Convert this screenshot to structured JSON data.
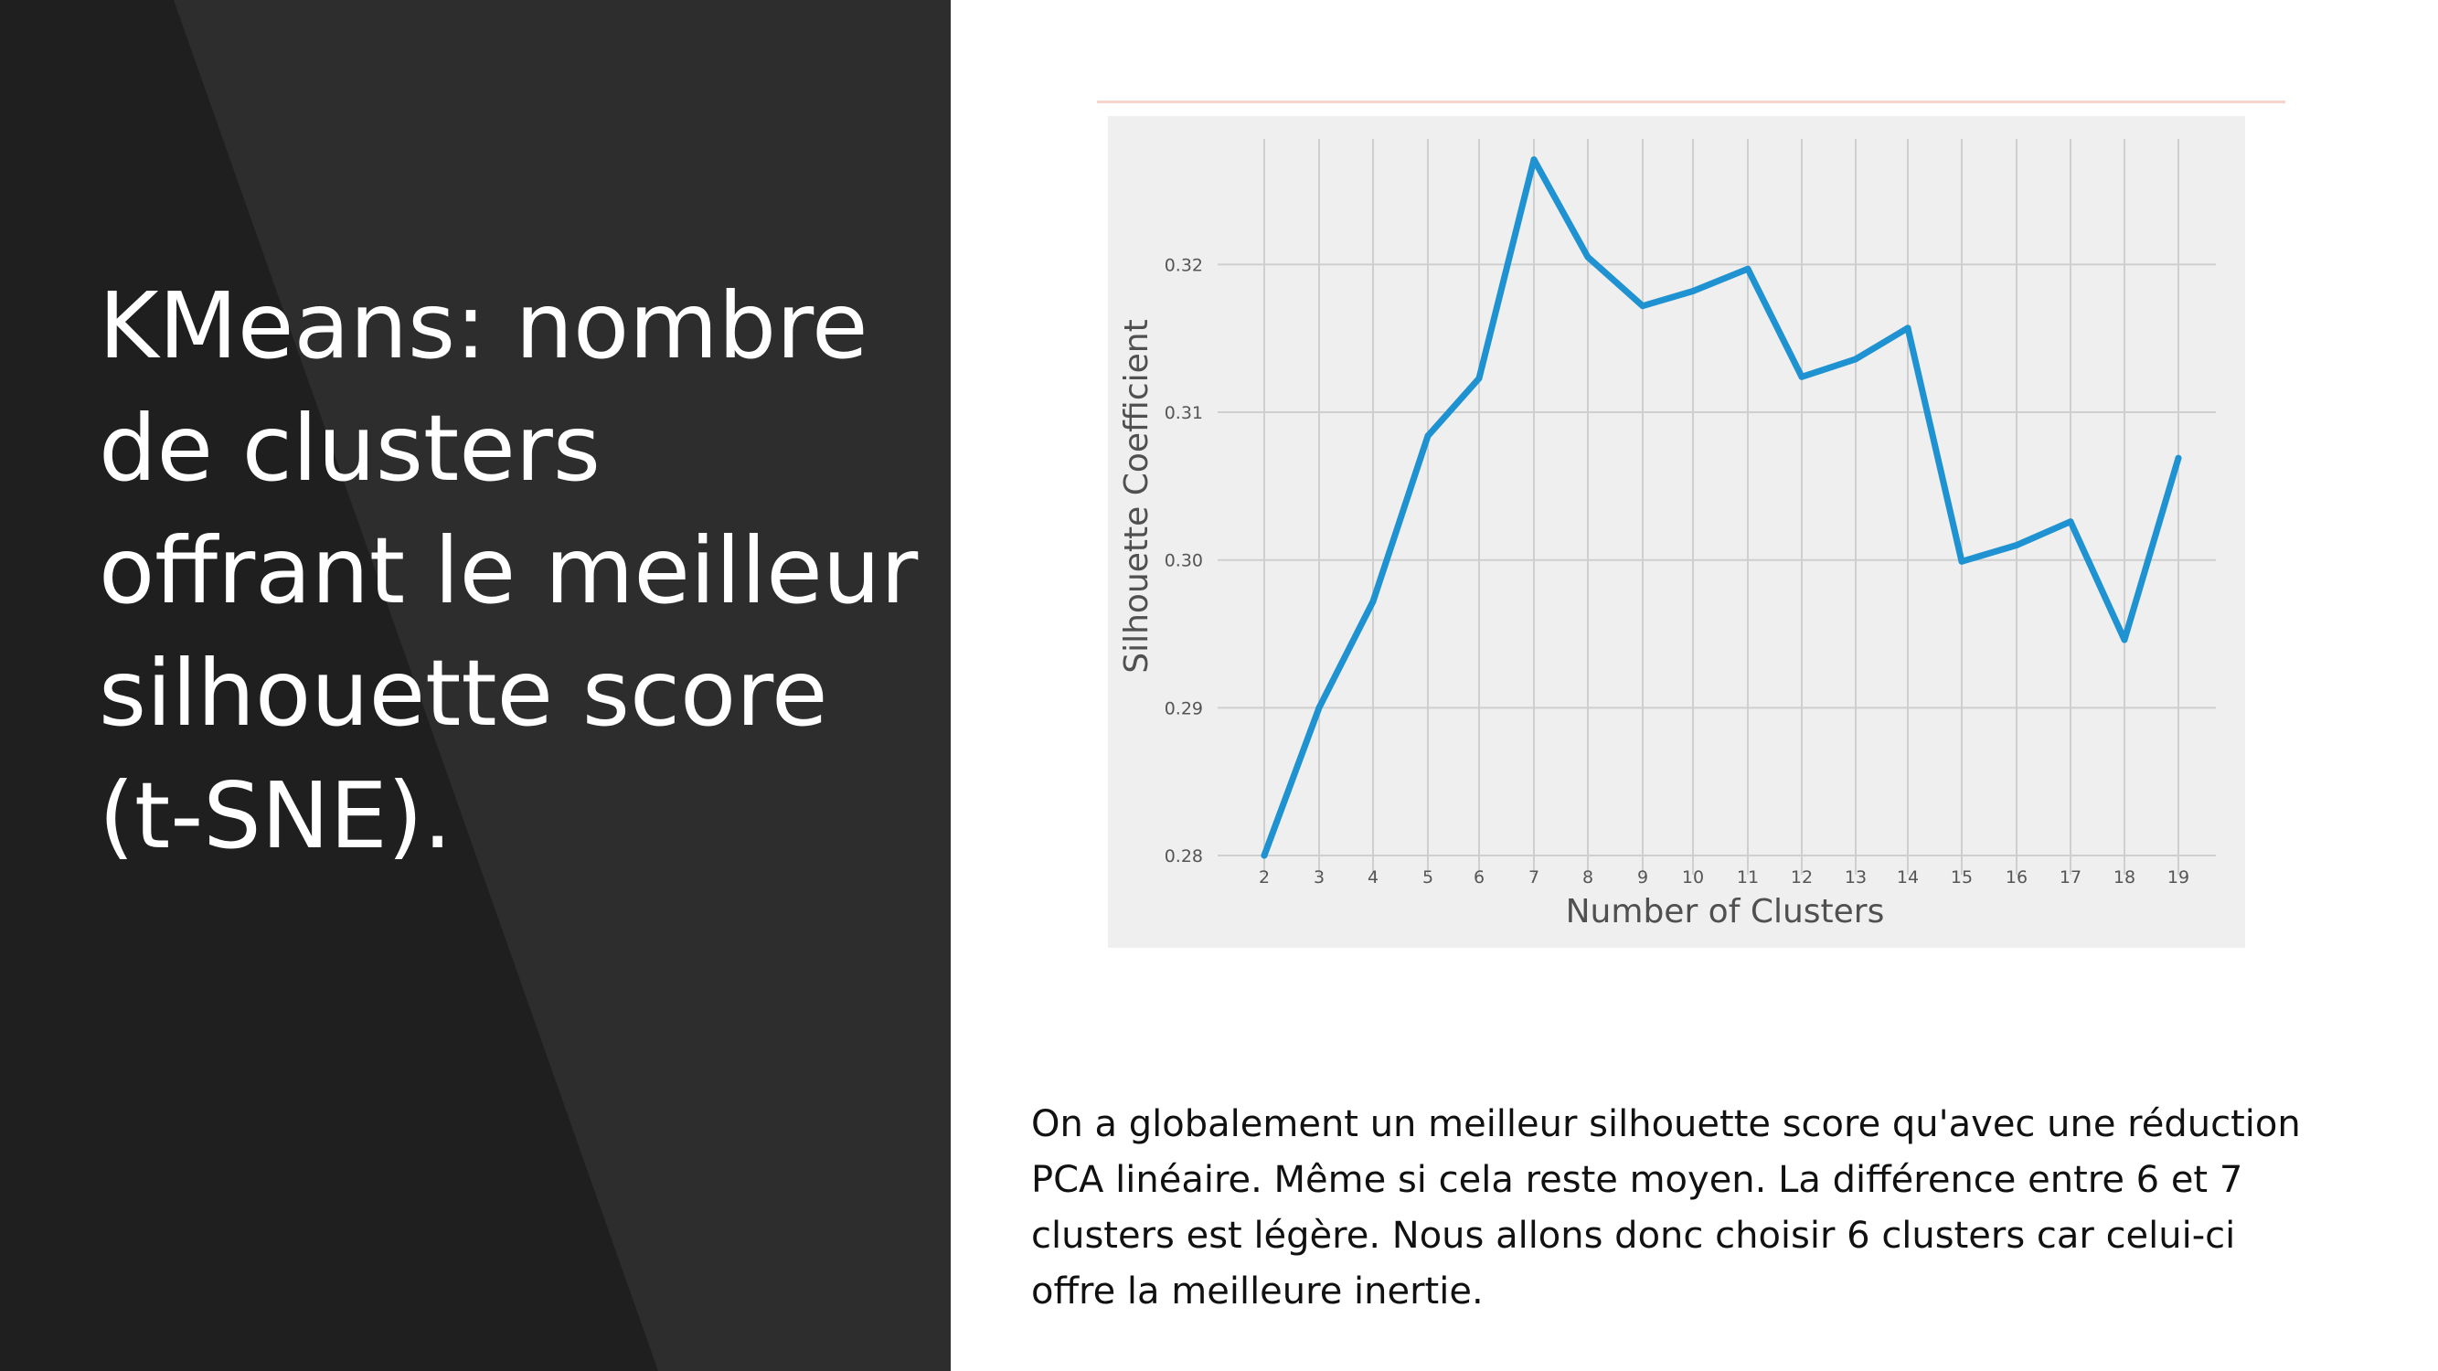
{
  "slide": {
    "title": "KMeans:  nombre de clusters offrant le meilleur silhouette score (t-SNE).",
    "caption": "On a globalement un meilleur silhouette score qu'avec une réduction PCA linéaire. Même si cela reste moyen. La différence entre 6 et 7 clusters est légère. Nous allons donc choisir 6 clusters car celui-ci offre la meilleure inertie."
  },
  "colors": {
    "left_panel": "#2d2d2d",
    "left_panel_diagonal": "#1f1f1f",
    "plot_background": "#efefef",
    "gridline": "#cfcfcf",
    "series_line": "#1f92d1",
    "top_rule": "#f7d3cb"
  },
  "chart_data": {
    "type": "line",
    "title": "",
    "xlabel": "Number of Clusters",
    "ylabel": "Silhouette Coefficient",
    "x": [
      2,
      3,
      4,
      5,
      6,
      7,
      8,
      9,
      10,
      11,
      12,
      13,
      14,
      15,
      16,
      17,
      18,
      19
    ],
    "series": [
      {
        "name": "",
        "values": [
          0.28,
          0.29,
          0.2972,
          0.3084,
          0.3123,
          0.3271,
          0.3205,
          0.3172,
          0.3182,
          0.3197,
          0.3124,
          0.3136,
          0.3157,
          0.2999,
          0.301,
          0.3026,
          0.2946,
          0.3069
        ]
      }
    ],
    "yticks": [
      0.28,
      0.29,
      0.3,
      0.31,
      0.32
    ],
    "ytick_labels": [
      "0.28",
      "0.29",
      "0.30",
      "0.31",
      "0.32"
    ],
    "ylim": [
      0.2787,
      0.3285
    ],
    "xlim": [
      2,
      19
    ],
    "grid": true,
    "legend": "none"
  }
}
